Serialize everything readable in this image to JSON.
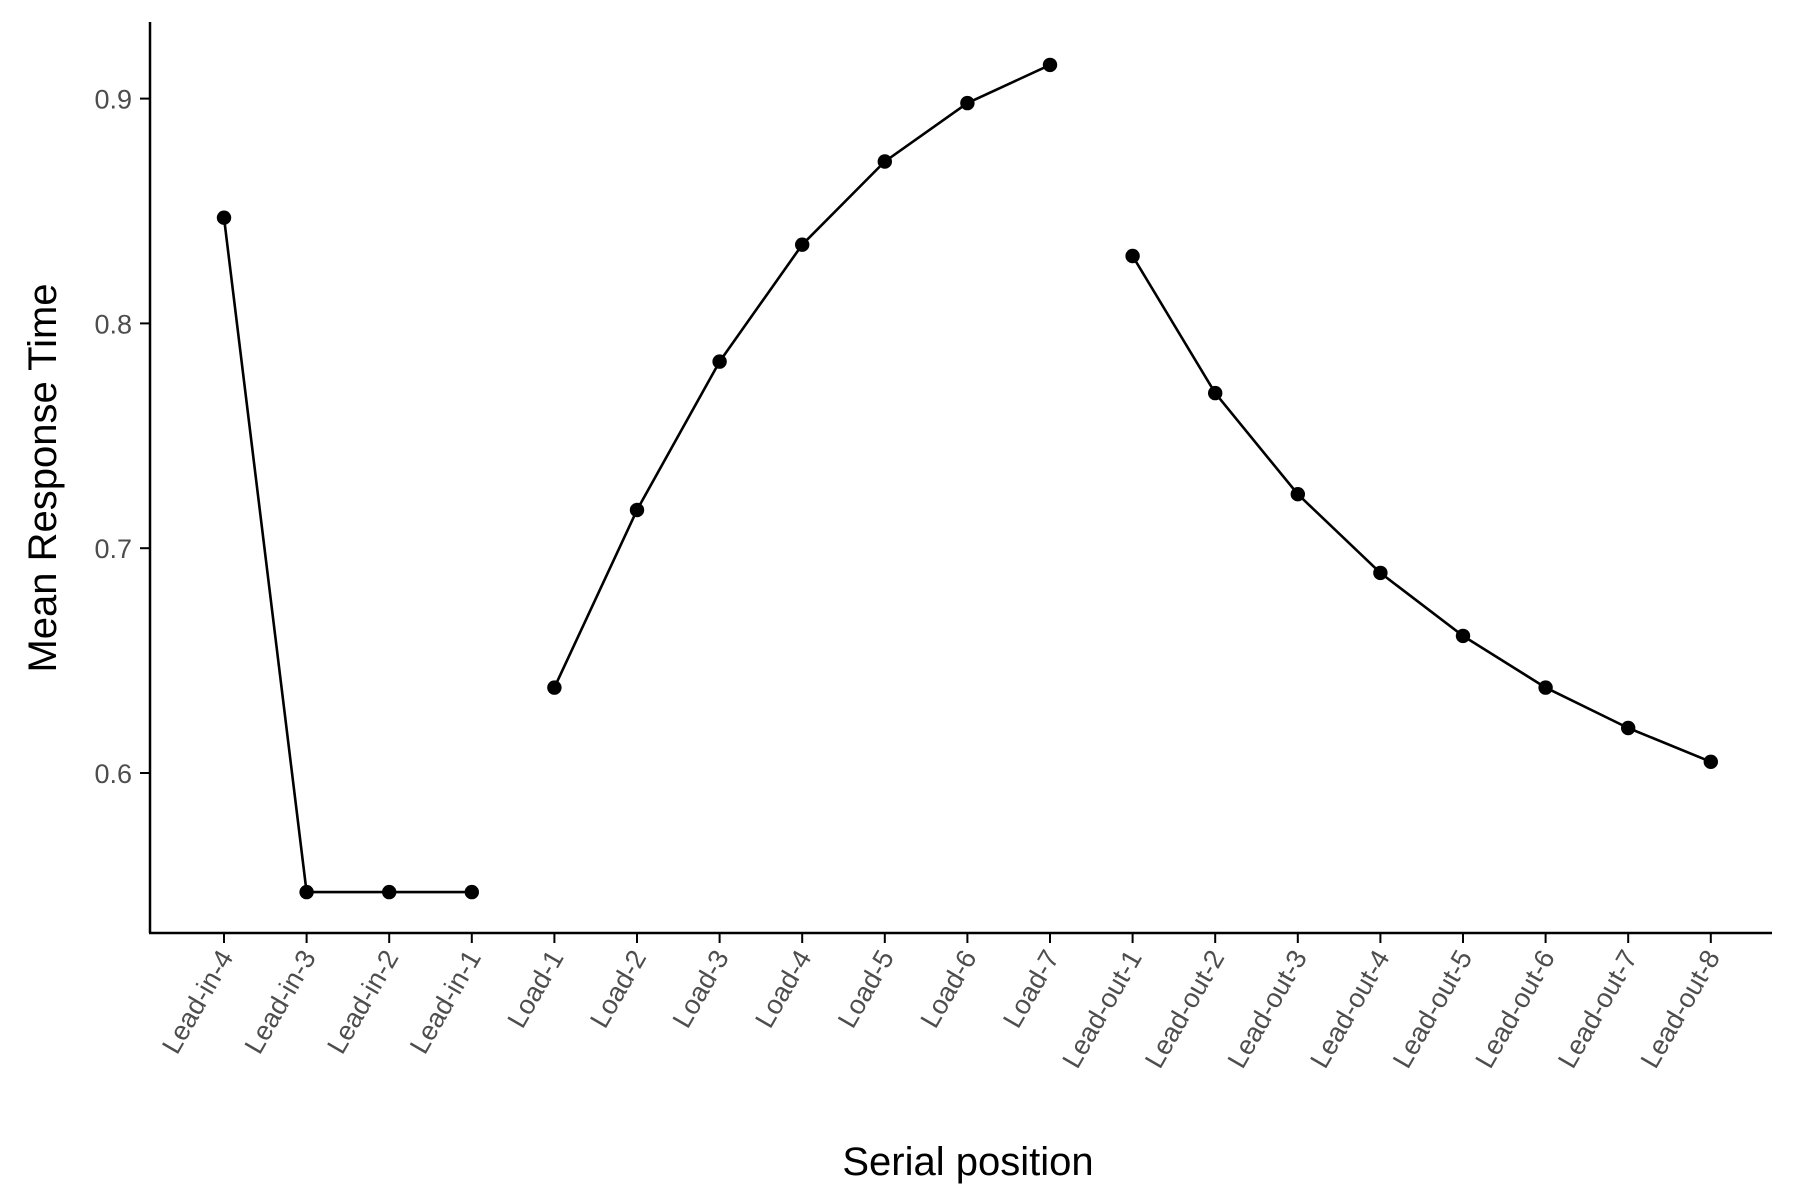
{
  "chart_data": {
    "type": "line",
    "xlabel": "Serial position",
    "ylabel": "Mean Response Time",
    "categories": [
      "Lead-in-4",
      "Lead-in-3",
      "Lead-in-2",
      "Lead-in-1",
      "Load-1",
      "Load-2",
      "Load-3",
      "Load-4",
      "Load-5",
      "Load-6",
      "Load-7",
      "Lead-out-1",
      "Lead-out-2",
      "Lead-out-3",
      "Lead-out-4",
      "Lead-out-5",
      "Lead-out-6",
      "Lead-out-7",
      "Lead-out-8"
    ],
    "yticks": [
      0.6,
      0.7,
      0.8,
      0.9
    ],
    "ylim": [
      0.53,
      0.934
    ],
    "grid": false,
    "legend": "none",
    "series": [
      {
        "group": "lead-in",
        "x": [
          "Lead-in-4",
          "Lead-in-3",
          "Lead-in-2",
          "Lead-in-1"
        ],
        "values": [
          0.847,
          0.547,
          0.547,
          0.547
        ]
      },
      {
        "group": "load",
        "x": [
          "Load-1",
          "Load-2",
          "Load-3",
          "Load-4",
          "Load-5",
          "Load-6",
          "Load-7"
        ],
        "values": [
          0.638,
          0.717,
          0.783,
          0.835,
          0.872,
          0.898,
          0.915
        ]
      },
      {
        "group": "lead-out",
        "x": [
          "Lead-out-1",
          "Lead-out-2",
          "Lead-out-3",
          "Lead-out-4",
          "Lead-out-5",
          "Lead-out-6",
          "Lead-out-7",
          "Lead-out-8"
        ],
        "values": [
          0.83,
          0.769,
          0.724,
          0.689,
          0.661,
          0.638,
          0.62,
          0.605
        ]
      }
    ],
    "colors": {
      "line": "#000000",
      "point": "#000000",
      "axis": "#000000",
      "tick_label": "#4d4d4d"
    }
  }
}
